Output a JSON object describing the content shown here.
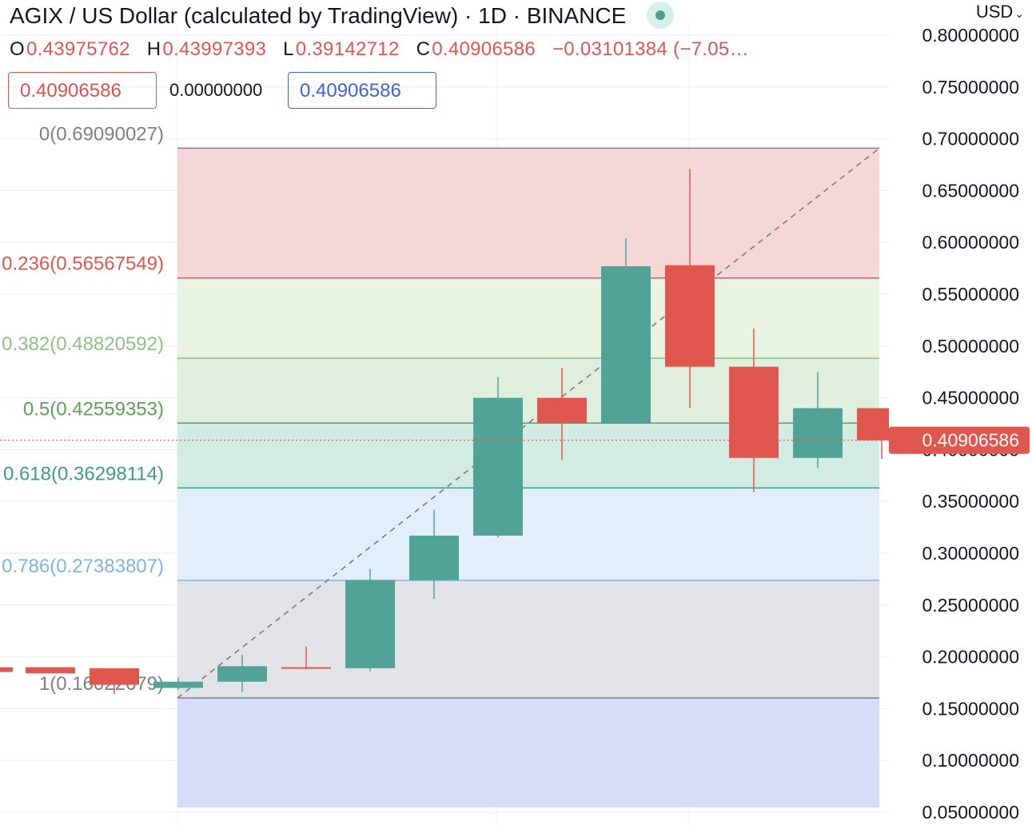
{
  "header": {
    "title": "AGIX / US Dollar (calculated by TradingView) · 1D · BINANCE",
    "currency": "USD"
  },
  "ohlc": {
    "o_label": "O",
    "o": "0.43975762",
    "h_label": "H",
    "h": "0.43997393",
    "l_label": "L",
    "l": "0.39142712",
    "c_label": "C",
    "c": "0.40906586",
    "change": "−0.03101384 (−7.05…"
  },
  "indicator_boxes": {
    "left_value": "0.40906586",
    "middle_value": "0.00000000",
    "right_value": "0.40906586"
  },
  "last_price_label": "0.40906586",
  "colors": {
    "up": "#52a397",
    "down": "#e0574f",
    "grid": "#eceef2",
    "text": "#131722"
  },
  "chart_data": {
    "type": "candlestick",
    "yaxis": {
      "ticks": [
        "0.05000000",
        "0.10000000",
        "0.15000000",
        "0.20000000",
        "0.25000000",
        "0.30000000",
        "0.35000000",
        "0.40000000",
        "0.45000000",
        "0.50000000",
        "0.55000000",
        "0.60000000",
        "0.65000000",
        "0.70000000",
        "0.75000000",
        "0.80000000"
      ],
      "range": [
        0.04,
        0.83
      ]
    },
    "candles": [
      {
        "o": 0.19,
        "h": 0.19,
        "l": 0.184,
        "c": 0.184
      },
      {
        "o": 0.189,
        "h": 0.189,
        "l": 0.164,
        "c": 0.173
      },
      {
        "o": 0.17,
        "h": 0.18,
        "l": 0.168,
        "c": 0.176
      },
      {
        "o": 0.176,
        "h": 0.202,
        "l": 0.166,
        "c": 0.191
      },
      {
        "o": 0.19,
        "h": 0.21,
        "l": 0.188,
        "c": 0.189
      },
      {
        "o": 0.189,
        "h": 0.285,
        "l": 0.186,
        "c": 0.274
      },
      {
        "o": 0.274,
        "h": 0.342,
        "l": 0.256,
        "c": 0.317
      },
      {
        "o": 0.317,
        "h": 0.47,
        "l": 0.315,
        "c": 0.45
      },
      {
        "o": 0.45,
        "h": 0.479,
        "l": 0.39,
        "c": 0.426
      },
      {
        "o": 0.426,
        "h": 0.604,
        "l": 0.426,
        "c": 0.577
      },
      {
        "o": 0.578,
        "h": 0.671,
        "l": 0.44,
        "c": 0.48
      },
      {
        "o": 0.48,
        "h": 0.517,
        "l": 0.359,
        "c": 0.392
      },
      {
        "o": 0.392,
        "h": 0.475,
        "l": 0.382,
        "c": 0.44
      },
      {
        "o": 0.44,
        "h": 0.44,
        "l": 0.391,
        "c": 0.409
      }
    ],
    "fibonacci": {
      "start": 0.16022679,
      "end": 0.69090027,
      "levels": [
        {
          "label": "0(0.69090027)",
          "value": 0.69090027,
          "fill": "#f6d7d8",
          "line": "#7d7d7d",
          "text": "#7f7f7f"
        },
        {
          "label": "0.236(0.56567549)",
          "value": 0.56567549,
          "fill": "#e9f3e2",
          "line": "#e0554e",
          "text": "#e0554e"
        },
        {
          "label": "0.382(0.48820592)",
          "value": 0.48820592,
          "fill": "#dfeedd",
          "line": "#8ec183",
          "text": "#8ec183"
        },
        {
          "label": "0.5(0.42559353)",
          "value": 0.42559353,
          "fill": "#d2ebe3",
          "line": "#5aa356",
          "text": "#5aa356"
        },
        {
          "label": "0.618(0.36298114)",
          "value": 0.36298114,
          "fill": "#e2eefb",
          "line": "#3c9c86",
          "text": "#3c9c86"
        },
        {
          "label": "0.786(0.27383807)",
          "value": 0.27383807,
          "fill": "#e3e4e7",
          "line": "#7eb5e0",
          "text": "#7eb5e0"
        },
        {
          "label": "1(0.16022679)",
          "value": 0.16022679,
          "fill": "#d5ddfa",
          "line": "#7d7d7d",
          "text": "#7f7f7f"
        }
      ]
    },
    "last_price": 0.40906586
  }
}
